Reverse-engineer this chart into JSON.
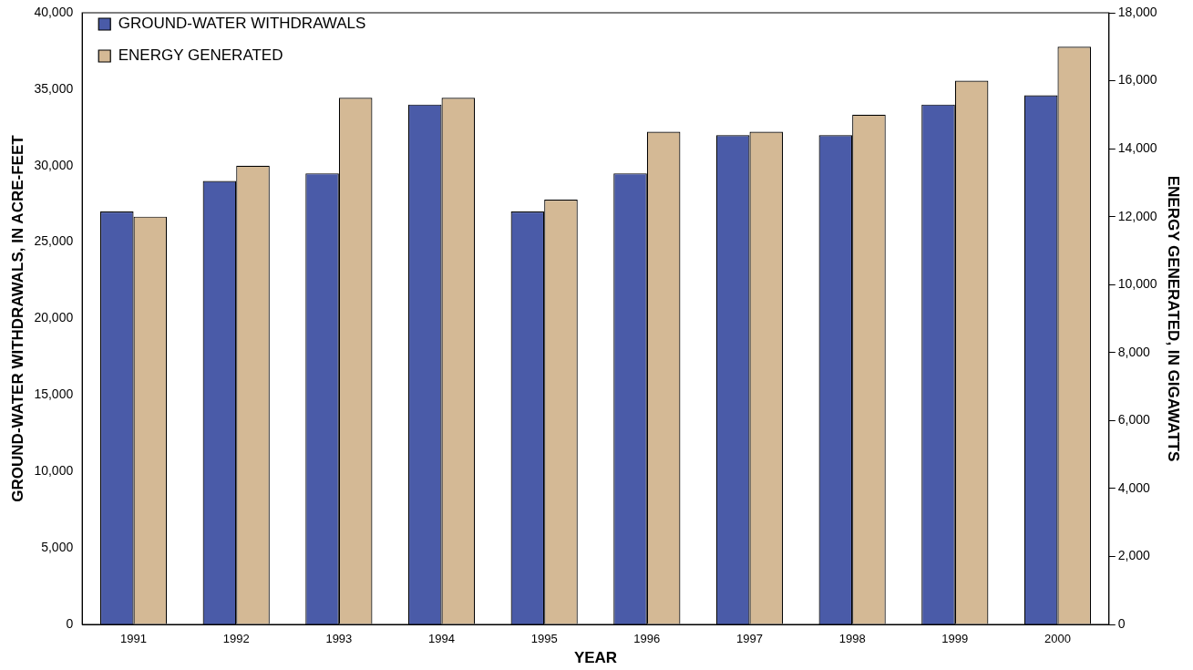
{
  "chart_data": {
    "type": "bar",
    "xlabel": "YEAR",
    "ylabel": "GROUND-WATER WITHDRAWALS, IN ACRE-FEET",
    "y2label": "ENERGY GENERATED, IN GIGAWATTS",
    "categories": [
      "1991",
      "1992",
      "1993",
      "1994",
      "1995",
      "1996",
      "1997",
      "1998",
      "1999",
      "2000"
    ],
    "series": [
      {
        "name": "GROUND-WATER WITHDRAWALS",
        "color": "#4a5ba8",
        "values": [
          27000,
          29000,
          29500,
          34000,
          27000,
          29500,
          32000,
          32000,
          34000,
          34600
        ]
      },
      {
        "name": "ENERGY GENERATED",
        "color": "#d4b995",
        "axis": "y2",
        "values": [
          12000,
          13500,
          15500,
          15500,
          12500,
          14500,
          14500,
          15000,
          16000,
          17000
        ]
      }
    ],
    "ylim": [
      0,
      40000
    ],
    "yticks": [
      0,
      {
        "value": 5000,
        "label": "5,000"
      },
      {
        "value": 10000,
        "label": "10,000"
      },
      {
        "value": 15000,
        "label": "15,000"
      },
      {
        "value": 20000,
        "label": "20,000"
      },
      {
        "value": 25000,
        "label": "25,000"
      },
      {
        "value": 30000,
        "label": "30,000"
      },
      {
        "value": 35000,
        "label": "35,000"
      },
      {
        "value": 40000,
        "label": "40,000"
      }
    ],
    "y2lim": [
      0,
      18000
    ],
    "y2ticks": [
      0,
      {
        "value": 2000,
        "label": "2,000"
      },
      {
        "value": 4000,
        "label": "4,000"
      },
      {
        "value": 6000,
        "label": "6,000"
      },
      {
        "value": 8000,
        "label": "8,000"
      },
      {
        "value": 10000,
        "label": "10,000"
      },
      {
        "value": 12000,
        "label": "12,000"
      },
      {
        "value": 14000,
        "label": "14,000"
      },
      {
        "value": 16000,
        "label": "16,000"
      },
      {
        "value": 18000,
        "label": "18,000"
      }
    ],
    "grid": false,
    "legend": "top left"
  }
}
